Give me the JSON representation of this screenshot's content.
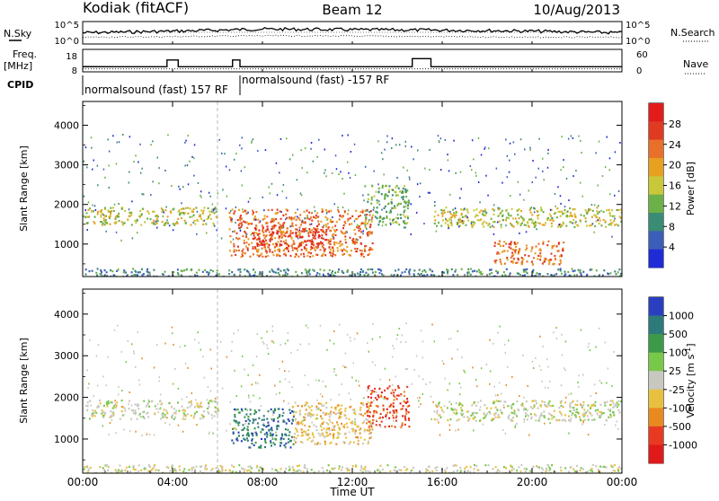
{
  "header": {
    "station": "Kodiak (fitACF)",
    "beam": "Beam 12",
    "date": "10/Aug/2013"
  },
  "labels": {
    "nsky": "N.Sky",
    "nsky_hi": "10^5",
    "nsky_lo": "10^0",
    "nsearch": "N.Search",
    "nsearch_hi": "10^5",
    "nsearch_lo": "10^0",
    "freq": "Freq.",
    "freq_unit": "[MHz]",
    "freq_hi": "18",
    "freq_lo": "8",
    "nave": "Nave",
    "nave_hi": "60",
    "nave_lo": "0",
    "cpid": "CPID",
    "cpid_1": "normalsound (fast) 157 RF",
    "cpid_2": "normalsound (fast) -157 RF"
  },
  "chart_data": [
    {
      "type": "line",
      "panel": "noise",
      "ylabel": "N.Sky",
      "ylabel_right": "N.Search",
      "y_scale": "log",
      "ylim": [
        1,
        100000
      ],
      "x": [
        "00:00",
        "02:00",
        "04:00",
        "06:00",
        "08:00",
        "10:00",
        "12:00",
        "14:00",
        "16:00",
        "18:00",
        "20:00",
        "22:00",
        "24:00"
      ],
      "series": [
        {
          "name": "N.Sky",
          "values": [
            300,
            500,
            800,
            1500,
            3000,
            2500,
            2000,
            1800,
            1500,
            1200,
            800,
            500,
            300
          ]
        },
        {
          "name": "N.Search",
          "values": [
            20,
            25,
            30,
            40,
            50,
            50,
            40,
            35,
            30,
            25,
            20,
            20,
            20
          ]
        }
      ]
    },
    {
      "type": "line",
      "panel": "frequency",
      "ylabel": "Freq. [MHz]",
      "ylabel_right": "Nave",
      "ylim": [
        8,
        18
      ],
      "ylim_right": [
        0,
        60
      ],
      "x": [
        "00:00",
        "02:00",
        "03:45",
        "04:15",
        "06:00",
        "06:40",
        "07:00",
        "12:00",
        "14:00",
        "14:40",
        "15:10",
        "15:30",
        "16:00",
        "24:00"
      ],
      "series": [
        {
          "name": "Freq.",
          "values": [
            10.3,
            10.3,
            13.3,
            10.3,
            10.3,
            13.3,
            10.3,
            10.3,
            10.3,
            13.9,
            13.9,
            10.3,
            10.3,
            10.3
          ]
        },
        {
          "name": "Nave",
          "values": [
            8,
            8,
            8,
            8,
            8,
            8,
            8,
            8,
            8,
            8,
            8,
            8,
            8,
            8
          ]
        }
      ]
    },
    {
      "type": "heatmap",
      "panel": "power",
      "ylabel": "Slant Range [km]",
      "ylim": [
        180,
        4600
      ],
      "xlim": [
        "00:00",
        "24:00"
      ],
      "yticks": [
        "1000",
        "2000",
        "3000",
        "4000"
      ],
      "colorbar_label": "Power [dB]",
      "colorbar_ticks": [
        "4",
        "8",
        "12",
        "16",
        "20",
        "24",
        "28"
      ],
      "colorscale": [
        "#1f2bd6",
        "#3b5fb8",
        "#3a8c74",
        "#6cb048",
        "#c8c83a",
        "#e8a020",
        "#e8702a",
        "#e03a22",
        "#e21b1b"
      ],
      "regions": [
        {
          "t0": 0.1,
          "t1": 6.0,
          "r0": 1500,
          "r1": 1950,
          "level": 16
        },
        {
          "t0": 6.5,
          "t1": 12.9,
          "r0": 700,
          "r1": 1900,
          "level": 22
        },
        {
          "t0": 7.5,
          "t1": 11.0,
          "r0": 900,
          "r1": 1500,
          "level": 28
        },
        {
          "t0": 12.5,
          "t1": 14.5,
          "r0": 1500,
          "r1": 2500,
          "level": 12
        },
        {
          "t0": 15.6,
          "t1": 24.0,
          "r0": 1450,
          "r1": 1950,
          "level": 14
        },
        {
          "t0": 18.3,
          "t1": 21.4,
          "r0": 500,
          "r1": 1100,
          "level": 24
        },
        {
          "t0": 0.0,
          "t1": 24.0,
          "r0": 180,
          "r1": 400,
          "level": 8
        }
      ]
    },
    {
      "type": "heatmap",
      "panel": "velocity",
      "ylabel": "Slant Range [km]",
      "xlabel": "Time UT",
      "ylim": [
        180,
        4600
      ],
      "xlim": [
        "00:00",
        "24:00"
      ],
      "xticks": [
        "00:00",
        "04:00",
        "08:00",
        "12:00",
        "16:00",
        "20:00",
        "00:00"
      ],
      "yticks": [
        "1000",
        "2000",
        "3000",
        "4000"
      ],
      "colorbar_label": "Velocity [m s^-1]",
      "colorbar_ticks": [
        "1000",
        "500",
        "100",
        "25",
        "-25",
        "-100",
        "-500",
        "-1000"
      ],
      "colorscale": [
        "#2a3fbf",
        "#2d7a7a",
        "#3c9a48",
        "#78c84a",
        "#c8c8c0",
        "#e8c040",
        "#e88a20",
        "#e83a20",
        "#e01a1a"
      ],
      "regions": [
        {
          "t0": 0.1,
          "t1": 6.0,
          "r0": 1500,
          "r1": 1950,
          "level": 25
        },
        {
          "t0": 6.6,
          "t1": 9.4,
          "r0": 800,
          "r1": 1750,
          "level": 500
        },
        {
          "t0": 9.3,
          "t1": 12.9,
          "r0": 900,
          "r1": 1900,
          "level": -100
        },
        {
          "t0": 12.6,
          "t1": 14.5,
          "r0": 1300,
          "r1": 2300,
          "level": -500
        },
        {
          "t0": 15.6,
          "t1": 24.0,
          "r0": 1450,
          "r1": 1950,
          "level": 25
        },
        {
          "t0": 0.0,
          "t1": 24.0,
          "r0": 180,
          "r1": 400,
          "level": 25
        }
      ]
    }
  ]
}
